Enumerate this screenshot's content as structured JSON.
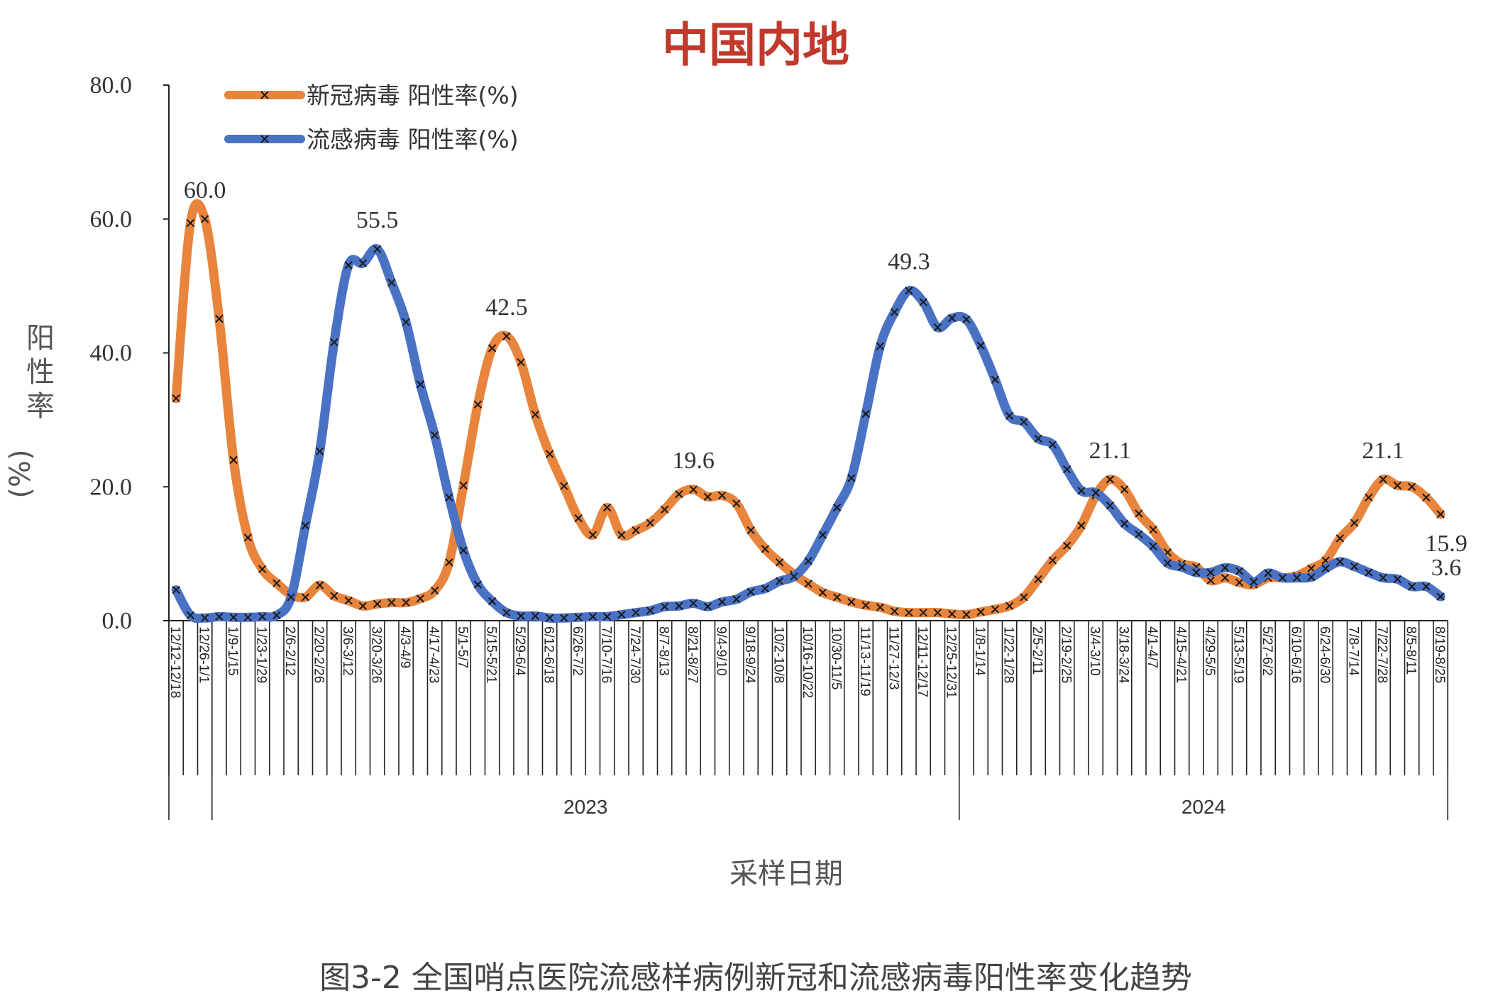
{
  "chart_data": {
    "type": "line",
    "title": "中国内地",
    "caption": "图3-2 全国哨点医院流感样病例新冠和流感病毒阳性率变化趋势",
    "xlabel": "采样日期",
    "ylabel": "阳性率",
    "ylabel_unit": "(%)",
    "ylim": [
      0,
      80
    ],
    "yticks": [
      "0.0",
      "20.0",
      "40.0",
      "60.0",
      "80.0"
    ],
    "grid": false,
    "legend_position": "top-left",
    "x_tick_labels": [
      "12/12-12/18",
      "12/26-1/1",
      "1/9-1/15",
      "1/23-1/29",
      "2/6-2/12",
      "2/20-2/26",
      "3/6-3/12",
      "3/20-3/26",
      "4/3-4/9",
      "4/17-4/23",
      "5/1-5/7",
      "5/15-5/21",
      "5/29-6/4",
      "6/12-6/18",
      "6/26-7/2",
      "7/10-7/16",
      "7/24-7/30",
      "8/7-8/13",
      "8/21-8/27",
      "9/4-9/10",
      "9/18-9/24",
      "10/2-10/8",
      "10/16-10/22",
      "10/30-11/5",
      "11/13-11/19",
      "11/27-12/3",
      "12/11-12/17",
      "12/25-12/31",
      "1/8-1/14",
      "1/22-1/28",
      "2/5-2/11",
      "2/19-2/25",
      "3/4-3/10",
      "3/18-3/24",
      "4/1-4/7",
      "4/15-4/21",
      "4/29-5/5",
      "5/13-5/19",
      "5/27-6/2",
      "6/10-6/16",
      "6/24-6/30",
      "7/8-7/14",
      "7/22-7/28",
      "8/5-8/11",
      "8/19-8/25"
    ],
    "year_groups": [
      {
        "label": "",
        "first_week": 0,
        "last_week": 2
      },
      {
        "label": "2023",
        "first_week": 3,
        "last_week": 54
      },
      {
        "label": "2024",
        "first_week": 55,
        "last_week": 88
      }
    ],
    "series": [
      {
        "name": "新冠病毒 阳性率(%)",
        "color": "#e8843c",
        "marker": "x",
        "values": [
          33.2,
          59.4,
          60.0,
          45.1,
          24.0,
          12.4,
          7.7,
          5.6,
          3.9,
          3.5,
          5.3,
          3.7,
          3.0,
          2.2,
          2.5,
          2.7,
          2.7,
          3.3,
          4.5,
          8.7,
          20.2,
          32.3,
          40.7,
          42.5,
          38.6,
          30.8,
          24.9,
          20.1,
          15.3,
          12.8,
          16.9,
          12.8,
          13.5,
          14.6,
          16.6,
          18.9,
          19.6,
          18.5,
          18.7,
          17.5,
          13.5,
          10.7,
          8.7,
          6.9,
          5.5,
          4.2,
          3.5,
          2.8,
          2.3,
          2.0,
          1.4,
          1.2,
          1.2,
          1.2,
          1.0,
          0.9,
          1.3,
          1.7,
          2.2,
          3.5,
          6.2,
          9.0,
          11.2,
          14.2,
          18.7,
          21.1,
          19.6,
          16.0,
          13.6,
          10.2,
          8.5,
          8.0,
          6.0,
          6.4,
          5.7,
          5.4,
          6.4,
          6.4,
          6.7,
          7.8,
          9.0,
          12.3,
          14.6,
          18.4,
          21.1,
          20.2,
          20.0,
          18.4,
          15.9
        ]
      },
      {
        "name": "流感病毒 阳性率(%)",
        "color": "#4a72c4",
        "marker": "x",
        "values": [
          4.6,
          0.8,
          0.4,
          0.6,
          0.5,
          0.5,
          0.6,
          0.8,
          3.5,
          14.2,
          25.3,
          41.6,
          53.1,
          53.4,
          55.5,
          50.5,
          44.6,
          35.3,
          27.7,
          18.4,
          10.5,
          5.4,
          2.9,
          1.2,
          0.7,
          0.7,
          0.4,
          0.4,
          0.5,
          0.6,
          0.6,
          0.9,
          1.2,
          1.5,
          2.1,
          2.2,
          2.6,
          2.1,
          2.8,
          3.2,
          4.3,
          4.8,
          5.9,
          6.6,
          8.9,
          12.8,
          16.9,
          21.3,
          30.9,
          41.0,
          46.1,
          49.3,
          47.6,
          43.8,
          45.2,
          45.0,
          41.1,
          36.0,
          30.6,
          29.7,
          27.2,
          26.3,
          22.6,
          19.4,
          19.1,
          17.2,
          14.5,
          12.9,
          11.1,
          8.6,
          8.0,
          7.2,
          7.2,
          7.9,
          7.4,
          5.8,
          7.1,
          6.4,
          6.4,
          6.5,
          7.8,
          8.8,
          8.1,
          7.2,
          6.4,
          6.2,
          5.1,
          5.1,
          3.6
        ]
      }
    ],
    "annotations": [
      {
        "series": 0,
        "week": 2,
        "text": "60.0",
        "position": "above"
      },
      {
        "series": 1,
        "week": 14,
        "text": "55.5",
        "position": "above"
      },
      {
        "series": 0,
        "week": 23,
        "text": "42.5",
        "position": "above"
      },
      {
        "series": 0,
        "week": 36,
        "text": "19.6",
        "position": "above"
      },
      {
        "series": 1,
        "week": 51,
        "text": "49.3",
        "position": "above"
      },
      {
        "series": 0,
        "week": 65,
        "text": "21.1",
        "position": "above"
      },
      {
        "series": 0,
        "week": 84,
        "text": "21.1",
        "position": "above"
      },
      {
        "series": 0,
        "week": 88,
        "text": "15.9",
        "position": "below"
      },
      {
        "series": 1,
        "week": 88,
        "text": "3.6",
        "position": "above"
      }
    ]
  }
}
